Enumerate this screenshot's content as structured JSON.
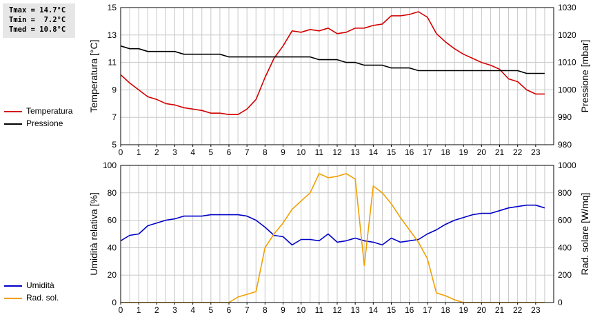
{
  "stats": {
    "tmax": "Tmax = 14.7°C",
    "tmin": "Tmin =  7.2°C",
    "tmed": "Tmed = 10.8°C"
  },
  "chart_data": [
    {
      "type": "line",
      "x_ticks": [
        0,
        1,
        2,
        3,
        4,
        5,
        6,
        7,
        8,
        9,
        10,
        11,
        12,
        13,
        14,
        15,
        16,
        17,
        18,
        19,
        20,
        21,
        22,
        23
      ],
      "xlim": [
        0,
        24
      ],
      "ylabel": "Temperatura [°C]",
      "y2label": "Pressione [mbar]",
      "ylim": [
        5,
        15
      ],
      "y2lim": [
        980,
        1030
      ],
      "y_ticks": [
        5,
        7,
        9,
        11,
        13,
        15
      ],
      "y2_ticks": [
        980,
        990,
        1000,
        1010,
        1020,
        1030
      ],
      "grid": true,
      "legend_position": "left",
      "series": [
        {
          "name": "Temperatura",
          "axis": "left",
          "color": "#d40000",
          "x": [
            0,
            0.5,
            1,
            1.5,
            2,
            2.5,
            3,
            3.5,
            4,
            4.5,
            5,
            5.5,
            6,
            6.5,
            7,
            7.5,
            8,
            8.5,
            9,
            9.5,
            10,
            10.5,
            11,
            11.5,
            12,
            12.5,
            13,
            13.5,
            14,
            14.5,
            15,
            15.5,
            16,
            16.5,
            17,
            17.5,
            18,
            18.5,
            19,
            19.5,
            20,
            20.5,
            21,
            21.5,
            22,
            22.5,
            23,
            23.5
          ],
          "y": [
            10.1,
            9.5,
            9.0,
            8.5,
            8.3,
            8.0,
            7.9,
            7.7,
            7.6,
            7.5,
            7.3,
            7.3,
            7.2,
            7.2,
            7.6,
            8.3,
            9.9,
            11.3,
            12.2,
            13.3,
            13.2,
            13.4,
            13.3,
            13.5,
            13.1,
            13.2,
            13.5,
            13.5,
            13.7,
            13.8,
            14.4,
            14.4,
            14.5,
            14.7,
            14.3,
            13.1,
            12.5,
            12.0,
            11.6,
            11.3,
            11.0,
            10.8,
            10.5,
            9.8,
            9.6,
            9.0,
            8.7,
            8.7
          ]
        },
        {
          "name": "Pressione",
          "axis": "right",
          "color": "#000000",
          "x": [
            0,
            0.5,
            1,
            1.5,
            2,
            2.5,
            3,
            3.5,
            4,
            4.5,
            5,
            5.5,
            6,
            6.5,
            7,
            7.5,
            8,
            8.5,
            9,
            9.5,
            10,
            10.5,
            11,
            11.5,
            12,
            12.5,
            13,
            13.5,
            14,
            14.5,
            15,
            15.5,
            16,
            16.5,
            17,
            17.5,
            18,
            18.5,
            19,
            19.5,
            20,
            20.5,
            21,
            21.5,
            22,
            22.5,
            23,
            23.5
          ],
          "y": [
            1016,
            1015,
            1015,
            1014,
            1014,
            1014,
            1014,
            1013,
            1013,
            1013,
            1013,
            1013,
            1012,
            1012,
            1012,
            1012,
            1012,
            1012,
            1012,
            1012,
            1012,
            1012,
            1011,
            1011,
            1011,
            1010,
            1010,
            1009,
            1009,
            1009,
            1008,
            1008,
            1008,
            1007,
            1007,
            1007,
            1007,
            1007,
            1007,
            1007,
            1007,
            1007,
            1007,
            1007,
            1007,
            1006,
            1006,
            1006
          ]
        }
      ]
    },
    {
      "type": "line",
      "x_ticks": [
        0,
        1,
        2,
        3,
        4,
        5,
        6,
        7,
        8,
        9,
        10,
        11,
        12,
        13,
        14,
        15,
        16,
        17,
        18,
        19,
        20,
        21,
        22,
        23
      ],
      "xlim": [
        0,
        24
      ],
      "ylabel": "Umidità relativa [%]",
      "y2label": "Rad. solare [W/mq]",
      "ylim": [
        0,
        100
      ],
      "y2lim": [
        0,
        1000
      ],
      "y_ticks": [
        0,
        20,
        40,
        60,
        80,
        100
      ],
      "y2_ticks": [
        0,
        200,
        400,
        600,
        800,
        1000
      ],
      "grid": true,
      "legend_position": "left",
      "series": [
        {
          "name": "Umidità",
          "axis": "left",
          "color": "#0000c8",
          "x": [
            0,
            0.5,
            1,
            1.5,
            2,
            2.5,
            3,
            3.5,
            4,
            4.5,
            5,
            5.5,
            6,
            6.5,
            7,
            7.5,
            8,
            8.5,
            9,
            9.5,
            10,
            10.5,
            11,
            11.5,
            12,
            12.5,
            13,
            13.5,
            14,
            14.5,
            15,
            15.5,
            16,
            16.5,
            17,
            17.5,
            18,
            18.5,
            19,
            19.5,
            20,
            20.5,
            21,
            21.5,
            22,
            22.5,
            23,
            23.5
          ],
          "y": [
            45,
            49,
            50,
            56,
            58,
            60,
            61,
            63,
            63,
            63,
            64,
            64,
            64,
            64,
            63,
            60,
            55,
            49,
            48,
            42,
            46,
            46,
            45,
            50,
            44,
            45,
            47,
            45,
            44,
            42,
            47,
            44,
            45,
            46,
            50,
            53,
            57,
            60,
            62,
            64,
            65,
            65,
            67,
            69,
            70,
            71,
            71,
            69
          ]
        },
        {
          "name": "Rad. sol.",
          "axis": "right",
          "color": "#f0a000",
          "x": [
            0,
            0.5,
            1,
            1.5,
            2,
            2.5,
            3,
            3.5,
            4,
            4.5,
            5,
            5.5,
            6,
            6.5,
            7,
            7.5,
            8,
            8.5,
            9,
            9.5,
            10,
            10.5,
            11,
            11.5,
            12,
            12.5,
            13,
            13.5,
            14,
            14.5,
            15,
            15.5,
            16,
            16.5,
            17,
            17.5,
            18,
            18.5,
            19,
            19.5,
            20,
            20.5,
            21,
            21.5,
            22,
            22.5,
            23,
            23.5
          ],
          "y": [
            0,
            0,
            0,
            0,
            0,
            0,
            0,
            0,
            0,
            0,
            0,
            0,
            0,
            40,
            60,
            80,
            400,
            500,
            580,
            680,
            740,
            800,
            940,
            910,
            920,
            940,
            900,
            270,
            850,
            800,
            720,
            620,
            530,
            440,
            320,
            70,
            50,
            20,
            0,
            0,
            0,
            0,
            0,
            0,
            0,
            0,
            0,
            0
          ]
        }
      ]
    }
  ]
}
